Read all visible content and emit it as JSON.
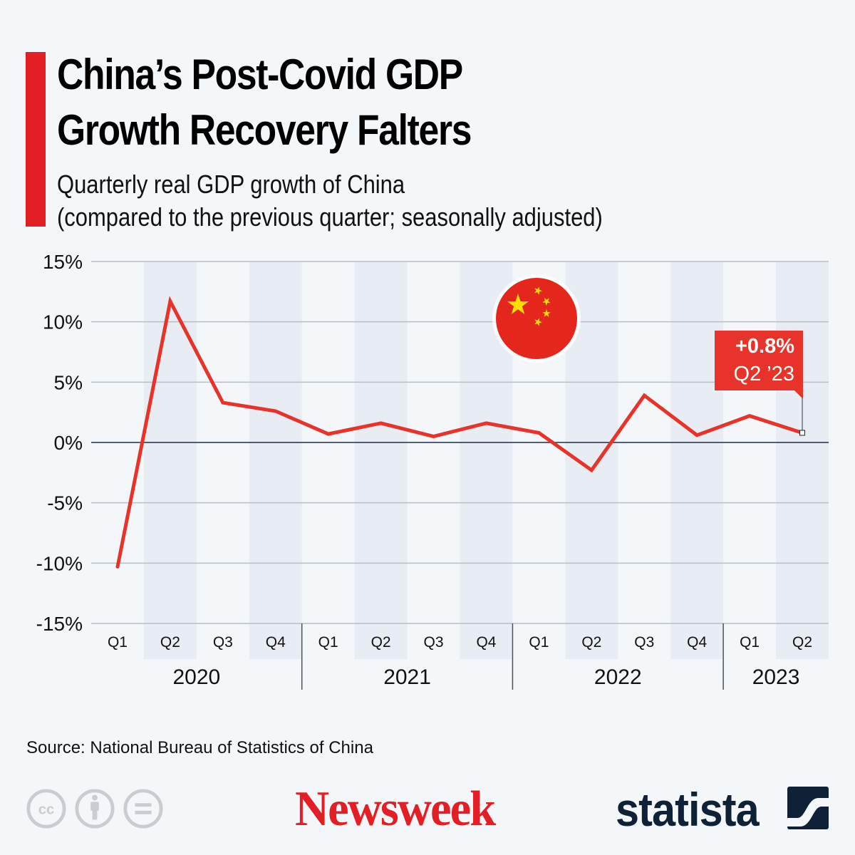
{
  "header": {
    "title_line1": "China’s Post-Covid GDP",
    "title_line2": "Growth Recovery Falters",
    "subtitle_line1": "Quarterly real GDP growth of China",
    "subtitle_line2": "(compared to the previous quarter; seasonally adjusted)"
  },
  "colors": {
    "accent": "#e31e24",
    "line": "#e8332a",
    "band": "#e8edf3",
    "background": "#f4f7fa",
    "zero_line": "#1d2b4f",
    "statista_navy": "#0f2137",
    "flag_red": "#e4261c",
    "flag_star": "#ffde00"
  },
  "chart_data": {
    "type": "line",
    "title": "China’s Post-Covid GDP Growth Recovery Falters",
    "subtitle": "Quarterly real GDP growth of China (compared to the previous quarter; seasonally adjusted)",
    "xlabel": "",
    "ylabel": "",
    "ylim": [
      -15,
      15
    ],
    "yticks": [
      15,
      10,
      5,
      0,
      -5,
      -10,
      -15
    ],
    "ytick_labels": [
      "15%",
      "10%",
      "5%",
      "0%",
      "-5%",
      "-10%",
      "-15%"
    ],
    "grid": true,
    "legend": "none",
    "categories": [
      "Q1",
      "Q2",
      "Q3",
      "Q4",
      "Q1",
      "Q2",
      "Q3",
      "Q4",
      "Q1",
      "Q2",
      "Q3",
      "Q4",
      "Q1",
      "Q2"
    ],
    "years": [
      {
        "label": "2020",
        "quarters": 4
      },
      {
        "label": "2021",
        "quarters": 4
      },
      {
        "label": "2022",
        "quarters": 4
      },
      {
        "label": "2023",
        "quarters": 2
      }
    ],
    "series": [
      {
        "name": "Quarterly real GDP growth",
        "values": [
          -10.3,
          11.7,
          3.3,
          2.6,
          0.7,
          1.6,
          0.5,
          1.6,
          0.8,
          -2.3,
          3.9,
          0.6,
          2.2,
          0.8
        ]
      }
    ],
    "annotation": {
      "value_label": "+0.8%",
      "period_label": "Q2 ’23",
      "point_index": 13
    }
  },
  "footer": {
    "source": "Source: National Bureau of Statistics of China",
    "license_icons": [
      "cc-icon",
      "attribution-icon",
      "no-derivatives-icon"
    ],
    "publisher_logo": "Newsweek",
    "statista_logo": "statista"
  }
}
